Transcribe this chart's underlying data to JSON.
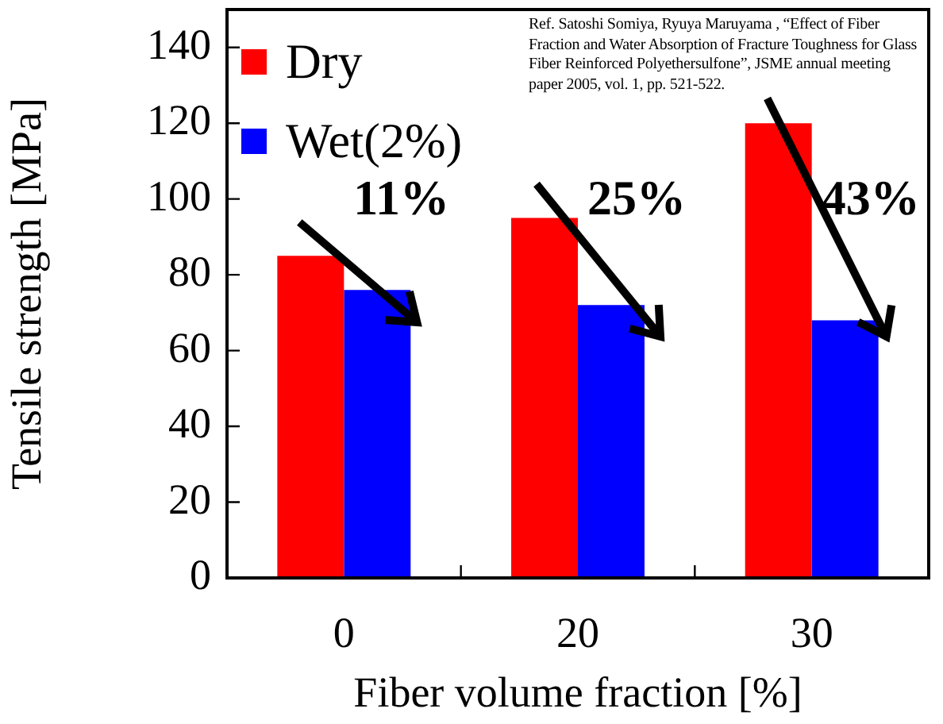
{
  "chart_data": {
    "type": "bar",
    "xlabel": "Fiber volume fraction [%]",
    "ylabel": "Tensile strength [MPa]",
    "categories": [
      "0",
      "20",
      "30"
    ],
    "series": [
      {
        "name": "Dry",
        "color": "#ff0000",
        "values": [
          85,
          95,
          120
        ]
      },
      {
        "name": "Wet(2%)",
        "color": "#0000ff",
        "values": [
          76,
          72,
          68
        ]
      }
    ],
    "ylim": [
      0,
      150
    ],
    "yticks": [
      0,
      20,
      40,
      60,
      80,
      100,
      120,
      140
    ],
    "grid": false,
    "legend": "top left",
    "annotations": [
      "11%",
      "25%",
      "43%",
      "Ref. Satoshi Somiya, Ryuya Maruyama , “Effect of Fiber Fraction and Water Absorption of Fracture Toughness for Glass Fiber Reinforced Polyethersulfone”,  JSME annual meeting paper 2005, vol. 1, pp. 521-522."
    ]
  }
}
